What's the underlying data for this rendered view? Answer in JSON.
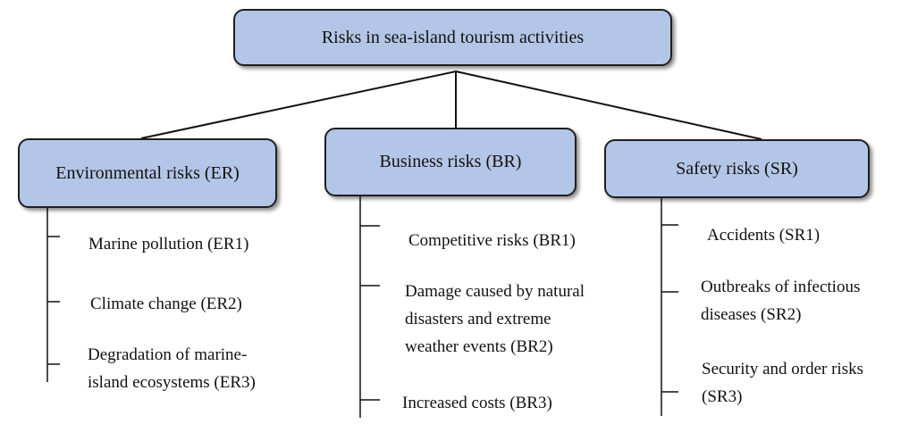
{
  "diagram": {
    "root": {
      "label": "Risks in sea-island tourism activities"
    },
    "categories": [
      {
        "label": "Environmental risks (ER)",
        "items": [
          [
            "Marine pollution (ER1)"
          ],
          [
            "Climate change (ER2)"
          ],
          [
            "Degradation of marine-",
            "island ecosystems (ER3)"
          ]
        ]
      },
      {
        "label": "Business risks (BR)",
        "items": [
          [
            "Competitive risks (BR1)"
          ],
          [
            "Damage caused by natural",
            "disasters and extreme",
            "weather events (BR2)"
          ],
          [
            "Increased costs (BR3)"
          ]
        ]
      },
      {
        "label": "Safety risks (SR)",
        "items": [
          [
            "Accidents (SR1)"
          ],
          [
            "Outbreaks of infectious",
            "diseases (SR2)"
          ],
          [
            "Security and order risks",
            "(SR3)"
          ]
        ]
      }
    ],
    "colors": {
      "box_fill": "#b4c6e7",
      "box_border": "#1f1f1f",
      "line": "#111111"
    }
  }
}
